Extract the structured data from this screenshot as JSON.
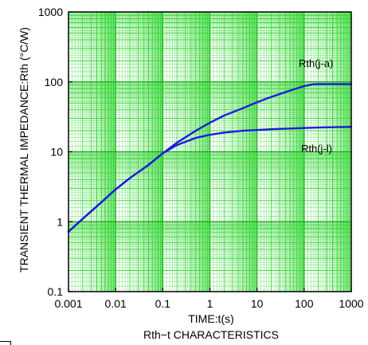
{
  "chart_data": {
    "type": "line",
    "x_scale": "log",
    "y_scale": "log",
    "xlim": [
      0.001,
      1000
    ],
    "ylim": [
      0.1,
      1000
    ],
    "grid": true,
    "xlabel": "TIME:t(s)",
    "ylabel": "TRANSIENT THERMAL IMPEDANCE:Rth (°C/W)",
    "caption": "Rth−t CHARACTERISTICS",
    "x_tick_labels": [
      "0.001",
      "0.01",
      "0.1",
      "1",
      "10",
      "100",
      "1000"
    ],
    "y_tick_labels": [
      "0.1",
      "1",
      "10",
      "100",
      "1000"
    ],
    "colors": {
      "series": "#1c1cde",
      "grid": "#33d633",
      "axis": "#000000"
    },
    "series": [
      {
        "name": "Rth(j-a)",
        "x": [
          0.001,
          0.002,
          0.005,
          0.01,
          0.02,
          0.05,
          0.1,
          0.2,
          0.5,
          1,
          2,
          5,
          10,
          20,
          50,
          100,
          150,
          200,
          500,
          1000
        ],
        "y": [
          0.72,
          1.1,
          1.9,
          2.9,
          4.2,
          6.5,
          9.5,
          13.5,
          20,
          26,
          33,
          42,
          51,
          61,
          75,
          87,
          92,
          93,
          93,
          93
        ]
      },
      {
        "name": "Rth(j-l)",
        "x": [
          0.001,
          0.002,
          0.005,
          0.01,
          0.02,
          0.05,
          0.1,
          0.2,
          0.5,
          1,
          2,
          5,
          10,
          20,
          50,
          100,
          200,
          500,
          1000
        ],
        "y": [
          0.72,
          1.1,
          1.9,
          2.9,
          4.2,
          6.5,
          9.5,
          12.5,
          15.8,
          17.5,
          18.8,
          20.0,
          20.5,
          21.0,
          21.5,
          21.9,
          22.2,
          22.5,
          22.7
        ]
      }
    ]
  }
}
